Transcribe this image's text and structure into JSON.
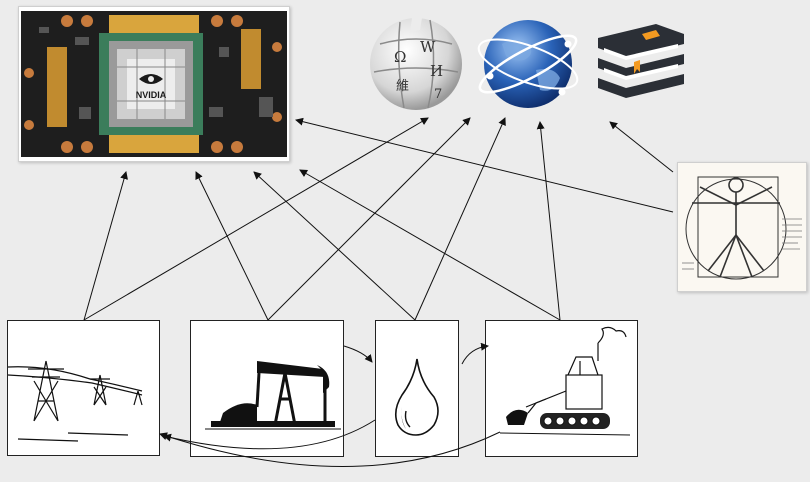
{
  "gpu": {
    "brand_text": "NVIDIA"
  },
  "wikipedia_logo": {
    "glyphs": [
      "Ω",
      "W",
      "И",
      "維",
      "7"
    ]
  },
  "icons": {
    "gpu_board": "gpu-board-icon",
    "wikipedia": "wikipedia-globe-icon",
    "internet": "internet-globe-icon",
    "books": "book-stack-icon",
    "vitruvian": "vitruvian-man-icon",
    "power_lines": "power-lines-icon",
    "oil_pump": "oil-pumpjack-icon",
    "oil_drop": "oil-drop-icon",
    "excavator": "excavator-icon"
  },
  "colors": {
    "background": "#ececec",
    "board": "#1e1e1e",
    "gold": "#d9a53d",
    "chip_green": "#3b7d5b",
    "globe_blue": "#2a63b8",
    "book_orange": "#f39a21",
    "arrow": "#111111"
  }
}
